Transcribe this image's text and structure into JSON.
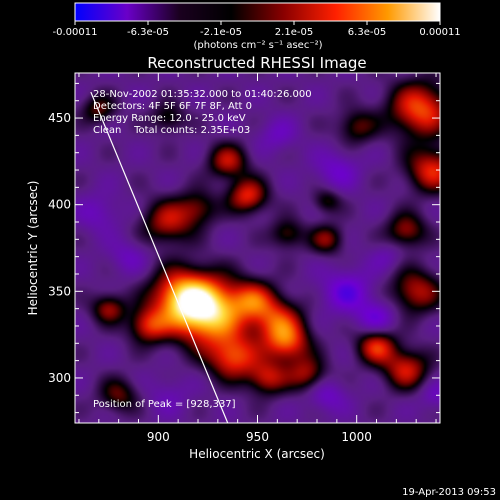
{
  "colorbar": {
    "ticks": [
      "-0.00011",
      "-6.3e-05",
      "-2.1e-05",
      "2.1e-05",
      "6.3e-05",
      "0.00011"
    ],
    "unit_label": "(photons cm⁻² s⁻¹ asec⁻²)",
    "colors": [
      "#0000ff",
      "#6a00c8",
      "#1a001f",
      "#000000",
      "#8a0000",
      "#ff2000",
      "#ff9a00",
      "#ffffff"
    ]
  },
  "chart_data": {
    "type": "heatmap",
    "title": "Reconstructed RHESSI Image",
    "xlabel": "Heliocentric X (arcsec)",
    "ylabel": "Heliocentric Y (arcsec)",
    "xlim": [
      858,
      1042
    ],
    "ylim": [
      274,
      476
    ],
    "x_ticks": [
      900,
      950,
      1000
    ],
    "y_ticks": [
      300,
      350,
      400,
      450
    ],
    "info_lines": [
      "28-Nov-2002 01:35:32.000 to 01:40:26.000",
      "Detectors: 4F 5F 6F 7F 8F, Att 0",
      "Energy Range: 12.0 - 25.0 keV",
      "Clean    Total counts: 2.35E+03"
    ],
    "peak_label": "Position of Peak = [928,337]",
    "peak": [
      928,
      337
    ],
    "limb_line": [
      [
        866,
        465
      ],
      [
        935,
        274
      ]
    ],
    "value_range": [
      -0.00011,
      0.00011
    ],
    "blobs": [
      {
        "x": 925,
        "y": 338,
        "v": 1.0,
        "s": 13
      },
      {
        "x": 912,
        "y": 347,
        "v": 0.7,
        "s": 11
      },
      {
        "x": 948,
        "y": 345,
        "v": 0.45,
        "s": 8
      },
      {
        "x": 960,
        "y": 333,
        "v": 0.5,
        "s": 9
      },
      {
        "x": 965,
        "y": 320,
        "v": 0.55,
        "s": 8
      },
      {
        "x": 938,
        "y": 312,
        "v": 0.6,
        "s": 9
      },
      {
        "x": 955,
        "y": 300,
        "v": 0.45,
        "s": 7
      },
      {
        "x": 975,
        "y": 302,
        "v": 0.4,
        "s": 7
      },
      {
        "x": 895,
        "y": 330,
        "v": 0.5,
        "s": 7
      },
      {
        "x": 875,
        "y": 340,
        "v": 0.4,
        "s": 6
      },
      {
        "x": 905,
        "y": 390,
        "v": 0.45,
        "s": 9
      },
      {
        "x": 920,
        "y": 398,
        "v": 0.3,
        "s": 7
      },
      {
        "x": 945,
        "y": 405,
        "v": 0.55,
        "s": 7
      },
      {
        "x": 935,
        "y": 425,
        "v": 0.45,
        "s": 7
      },
      {
        "x": 965,
        "y": 383,
        "v": 0.3,
        "s": 6
      },
      {
        "x": 985,
        "y": 380,
        "v": 0.35,
        "s": 6
      },
      {
        "x": 985,
        "y": 402,
        "v": 0.25,
        "s": 5
      },
      {
        "x": 1032,
        "y": 455,
        "v": 0.65,
        "s": 11
      },
      {
        "x": 1038,
        "y": 420,
        "v": 0.55,
        "s": 9
      },
      {
        "x": 1025,
        "y": 385,
        "v": 0.4,
        "s": 7
      },
      {
        "x": 1030,
        "y": 350,
        "v": 0.45,
        "s": 9
      },
      {
        "x": 1010,
        "y": 318,
        "v": 0.55,
        "s": 7
      },
      {
        "x": 1025,
        "y": 305,
        "v": 0.5,
        "s": 8
      },
      {
        "x": 870,
        "y": 455,
        "v": 0.3,
        "s": 6
      },
      {
        "x": 880,
        "y": 290,
        "v": 0.3,
        "s": 7
      },
      {
        "x": 905,
        "y": 450,
        "v": 0.25,
        "s": 6
      },
      {
        "x": 1000,
        "y": 445,
        "v": 0.3,
        "s": 7
      },
      {
        "x": 995,
        "y": 350,
        "v": -0.45,
        "s": 9
      },
      {
        "x": 1010,
        "y": 335,
        "v": -0.4,
        "s": 7
      },
      {
        "x": 990,
        "y": 420,
        "v": -0.35,
        "s": 8
      },
      {
        "x": 870,
        "y": 395,
        "v": -0.3,
        "s": 8
      },
      {
        "x": 885,
        "y": 370,
        "v": -0.3,
        "s": 7
      },
      {
        "x": 960,
        "y": 440,
        "v": -0.3,
        "s": 7
      },
      {
        "x": 905,
        "y": 290,
        "v": -0.25,
        "s": 8
      },
      {
        "x": 985,
        "y": 290,
        "v": -0.35,
        "s": 7
      },
      {
        "x": 1040,
        "y": 290,
        "v": -0.3,
        "s": 6
      },
      {
        "x": 1015,
        "y": 370,
        "v": -0.25,
        "s": 6
      }
    ]
  },
  "footer": {
    "date": "19-Apr-2013 09:53"
  }
}
